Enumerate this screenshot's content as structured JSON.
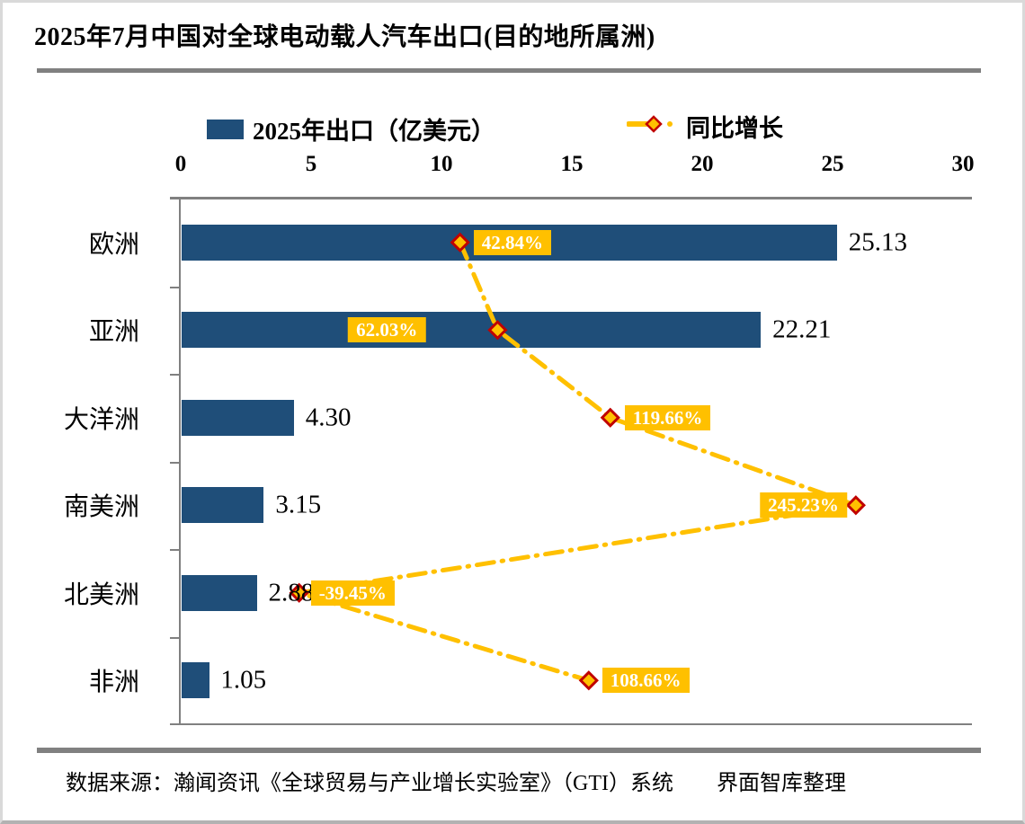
{
  "title": "2025年7月中国对全球电动载人汽车出口(目的地所属洲)",
  "legend": {
    "bars_label": "2025年出口（亿美元）",
    "line_label": "同比增长"
  },
  "footer": {
    "source": "数据来源：瀚闻资讯《全球贸易与产业增长实验室》（GTI）系统　　界面智库整理"
  },
  "colors": {
    "bar": "#1F4E79",
    "line": "#FFC000",
    "marker_fill": "#FFC000",
    "marker_stroke": "#C00000",
    "label_bg": "#FFC000",
    "label_text": "#FFFFFF",
    "axis": "#808080",
    "divider": "#808080",
    "text": "#000000"
  },
  "chart_data": {
    "type": "bar",
    "orientation": "horizontal",
    "title": "2025年7月中国对全球电动载人汽车出口(目的地所属洲)",
    "categories": [
      "欧洲",
      "亚洲",
      "大洋洲",
      "南美洲",
      "北美洲",
      "非洲"
    ],
    "series": [
      {
        "name": "2025年出口（亿美元）",
        "type": "bar",
        "axis": "primary",
        "values": [
          25.13,
          22.21,
          4.3,
          3.15,
          2.88,
          1.05
        ],
        "labels": [
          "25.13",
          "22.21",
          "4.30",
          "3.15",
          "2.88",
          "1.05"
        ]
      },
      {
        "name": "同比增长",
        "type": "line",
        "axis": "secondary",
        "line_style": "dash-dot",
        "marker": "diamond",
        "values": [
          42.84,
          62.03,
          119.66,
          245.23,
          -39.45,
          108.66
        ],
        "labels": [
          "42.84%",
          "62.03%",
          "119.66%",
          "245.23%",
          "-39.45%",
          "108.66%"
        ],
        "label_placement": [
          {
            "side": "right",
            "gap": 15
          },
          {
            "side": "left",
            "gap": 80
          },
          {
            "side": "right",
            "gap": 16
          },
          {
            "side": "left",
            "gap": 10
          },
          {
            "side": "right",
            "gap": 13
          },
          {
            "side": "right",
            "gap": 15
          }
        ]
      }
    ],
    "primary_axis": {
      "position": "top",
      "min": 0,
      "max": 30,
      "ticks": [
        0,
        5,
        10,
        15,
        20,
        25,
        30
      ]
    },
    "secondary_axis": {
      "min": -100,
      "max": 300,
      "visible": false
    },
    "legend_position": "top",
    "grid": false
  }
}
